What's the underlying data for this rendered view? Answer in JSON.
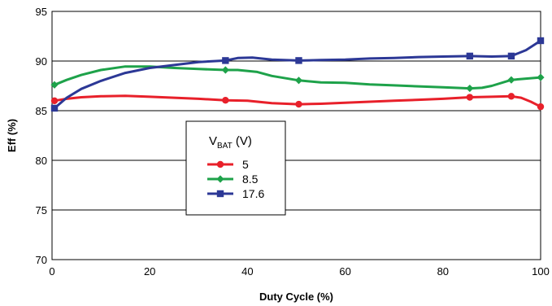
{
  "chart_data": {
    "type": "line",
    "title": "",
    "xlabel": "Duty Cycle (%)",
    "ylabel": "Eff (%)",
    "xlim": [
      0,
      100
    ],
    "ylim": [
      70,
      95
    ],
    "xticks": [
      0,
      20,
      40,
      60,
      80,
      100
    ],
    "yticks": [
      70,
      75,
      80,
      85,
      90,
      95
    ],
    "grid": "horizontal",
    "legend": {
      "title_main": "V",
      "title_sub": "BAT",
      "title_unit": " (V)",
      "placement": "center-left"
    },
    "series": [
      {
        "name": "5",
        "color": "#e8202a",
        "marker": "circle",
        "points": [
          [
            0.5,
            86.0
          ],
          [
            3,
            86.2
          ],
          [
            6,
            86.35
          ],
          [
            10,
            86.45
          ],
          [
            15,
            86.5
          ],
          [
            20,
            86.4
          ],
          [
            25,
            86.3
          ],
          [
            30,
            86.2
          ],
          [
            35.5,
            86.05
          ],
          [
            40,
            86.0
          ],
          [
            45,
            85.75
          ],
          [
            50.5,
            85.65
          ],
          [
            55,
            85.7
          ],
          [
            60,
            85.8
          ],
          [
            65,
            85.9
          ],
          [
            70,
            86.0
          ],
          [
            75,
            86.1
          ],
          [
            80,
            86.2
          ],
          [
            85.5,
            86.35
          ],
          [
            90,
            86.4
          ],
          [
            94,
            86.45
          ],
          [
            96,
            86.3
          ],
          [
            98,
            85.9
          ],
          [
            100,
            85.4
          ]
        ],
        "markers": [
          [
            0.5,
            86.0
          ],
          [
            35.5,
            86.05
          ],
          [
            50.5,
            85.65
          ],
          [
            85.5,
            86.35
          ],
          [
            94,
            86.45
          ],
          [
            100,
            85.4
          ]
        ]
      },
      {
        "name": "8.5",
        "color": "#1ea24a",
        "marker": "diamond",
        "points": [
          [
            0.5,
            87.6
          ],
          [
            3,
            88.1
          ],
          [
            6,
            88.6
          ],
          [
            10,
            89.1
          ],
          [
            15,
            89.45
          ],
          [
            20,
            89.45
          ],
          [
            25,
            89.3
          ],
          [
            30,
            89.2
          ],
          [
            35.5,
            89.1
          ],
          [
            38,
            89.1
          ],
          [
            42,
            88.9
          ],
          [
            45,
            88.5
          ],
          [
            50.5,
            88.05
          ],
          [
            55,
            87.85
          ],
          [
            60,
            87.8
          ],
          [
            65,
            87.65
          ],
          [
            70,
            87.55
          ],
          [
            75,
            87.45
          ],
          [
            80,
            87.35
          ],
          [
            85.5,
            87.25
          ],
          [
            88,
            87.3
          ],
          [
            90,
            87.5
          ],
          [
            94,
            88.1
          ],
          [
            100,
            88.35
          ]
        ],
        "markers": [
          [
            0.5,
            87.6
          ],
          [
            35.5,
            89.1
          ],
          [
            50.5,
            88.05
          ],
          [
            85.5,
            87.25
          ],
          [
            94,
            88.1
          ],
          [
            100,
            88.35
          ]
        ]
      },
      {
        "name": "17.6",
        "color": "#2c3896",
        "marker": "square",
        "points": [
          [
            0.5,
            85.25
          ],
          [
            3,
            86.3
          ],
          [
            6,
            87.2
          ],
          [
            10,
            88.0
          ],
          [
            15,
            88.8
          ],
          [
            20,
            89.3
          ],
          [
            25,
            89.6
          ],
          [
            30,
            89.9
          ],
          [
            35.5,
            90.05
          ],
          [
            38,
            90.3
          ],
          [
            41,
            90.35
          ],
          [
            45,
            90.15
          ],
          [
            50.5,
            90.05
          ],
          [
            55,
            90.1
          ],
          [
            60,
            90.15
          ],
          [
            65,
            90.25
          ],
          [
            70,
            90.3
          ],
          [
            75,
            90.4
          ],
          [
            80,
            90.45
          ],
          [
            85.5,
            90.5
          ],
          [
            90,
            90.45
          ],
          [
            94,
            90.5
          ],
          [
            97,
            91.1
          ],
          [
            100,
            92.05
          ]
        ],
        "markers": [
          [
            0.5,
            85.25
          ],
          [
            35.5,
            90.05
          ],
          [
            50.5,
            90.05
          ],
          [
            85.5,
            90.5
          ],
          [
            94,
            90.5
          ],
          [
            100,
            92.05
          ]
        ]
      }
    ]
  }
}
